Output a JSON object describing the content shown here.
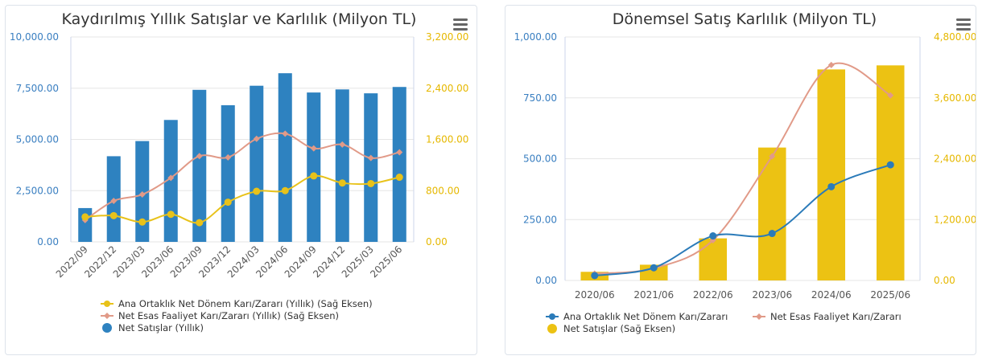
{
  "chart_data": [
    {
      "type": "bar",
      "title": "Kaydırılmış Yıllık Satışlar ve Karlılık (Milyon TL)",
      "categories": [
        "2022/09",
        "2022/12",
        "2023/03",
        "2023/06",
        "2023/09",
        "2023/12",
        "2024/03",
        "2024/06",
        "2024/09",
        "2024/12",
        "2025/03",
        "2025/06"
      ],
      "y_left": {
        "min": 0,
        "max": 10000,
        "ticks": [
          "0.00",
          "2,500.00",
          "5,000.00",
          "7,500.00",
          "10,000.00"
        ],
        "color": "#3a7fc1"
      },
      "y_right": {
        "min": 0,
        "max": 3200,
        "ticks": [
          "0.00",
          "800.00",
          "1,600.00",
          "2,400.00",
          "3,200.00"
        ],
        "color": "#e6b800"
      },
      "series": [
        {
          "name": "Net Satışlar (Yıllık)",
          "kind": "bar",
          "axis": "left",
          "color": "#2e82c0",
          "values": [
            1650,
            4180,
            4920,
            5950,
            7420,
            6670,
            7620,
            8230,
            7290,
            7440,
            7250,
            7560
          ]
        },
        {
          "name": "Net Esas Faaliyet Karı/Zararı (Yıllık) (Sağ Eksen)",
          "kind": "line",
          "axis": "right",
          "color": "#e19a88",
          "values": [
            340,
            640,
            740,
            1000,
            1340,
            1320,
            1610,
            1690,
            1460,
            1520,
            1310,
            1400
          ]
        },
        {
          "name": "Ana Ortaklık Net Dönem Karı/Zararı (Yıllık) (Sağ Eksen)",
          "kind": "line",
          "axis": "right",
          "color": "#e8c21a",
          "values": [
            390,
            410,
            310,
            430,
            300,
            620,
            790,
            800,
            1030,
            920,
            910,
            1010
          ]
        }
      ],
      "legend": [
        "Ana Ortaklık Net Dönem Karı/Zararı (Yıllık) (Sağ Eksen)",
        "Net Esas Faaliyet Karı/Zararı (Yıllık) (Sağ Eksen)",
        "Net Satışlar (Yıllık)"
      ],
      "legend_placement": "bottom",
      "grid": true
    },
    {
      "type": "bar",
      "title": "Dönemsel Satış Karlılık (Milyon TL)",
      "categories": [
        "2020/06",
        "2021/06",
        "2022/06",
        "2023/06",
        "2024/06",
        "2025/06"
      ],
      "y_left": {
        "min": 0,
        "max": 1000,
        "ticks": [
          "0.00",
          "250.00",
          "500.00",
          "750.00",
          "1,000.00"
        ],
        "color": "#3a7fc1"
      },
      "y_right": {
        "min": 0,
        "max": 4800,
        "ticks": [
          "0.00",
          "1,200.00",
          "2,400.00",
          "3,600.00",
          "4,800.00"
        ],
        "color": "#e6b800"
      },
      "series": [
        {
          "name": "Net Satışlar (Sağ Eksen)",
          "kind": "bar",
          "axis": "right",
          "color": "#ecc213",
          "values": [
            170,
            310,
            830,
            2620,
            4160,
            4240
          ]
        },
        {
          "name": "Net Esas Faaliyet Karı/Zararı",
          "kind": "line",
          "axis": "left",
          "color": "#e19a88",
          "values": [
            28,
            50,
            165,
            510,
            885,
            760
          ]
        },
        {
          "name": "Ana Ortaklık Net Dönem Karı/Zararı",
          "kind": "line",
          "axis": "left",
          "color": "#2b7bb9",
          "values": [
            20,
            52,
            183,
            193,
            385,
            475
          ]
        }
      ],
      "legend": [
        "Ana Ortaklık Net Dönem Karı/Zararı",
        "Net Esas Faaliyet Karı/Zararı",
        "Net Satışlar (Sağ Eksen)"
      ],
      "legend_placement": "bottom",
      "grid": true
    }
  ],
  "menu_icon": "hamburger-menu-icon"
}
